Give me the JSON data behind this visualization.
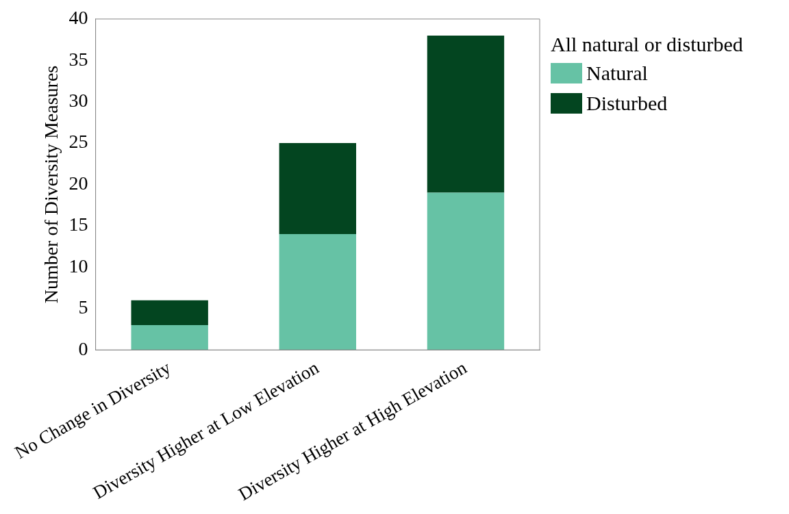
{
  "chart_data": {
    "type": "bar",
    "stacked": true,
    "ylabel": "Number of Diversity Measures",
    "legend_title": "All natural or disturbed",
    "legend": "top right",
    "grid": false,
    "categories": [
      "No Change in Diversity",
      "Diversity Higher at Low Elevation",
      "Diversity Higher at High Elevation"
    ],
    "series": [
      {
        "name": "Natural",
        "color": "#66c2a5",
        "values": [
          3,
          14,
          19
        ]
      },
      {
        "name": "Disturbed",
        "color": "#034520",
        "values": [
          3,
          11,
          19
        ]
      }
    ],
    "ylim": [
      0,
      40
    ],
    "yticks": [
      0,
      5,
      10,
      15,
      20,
      25,
      30,
      35,
      40
    ]
  }
}
